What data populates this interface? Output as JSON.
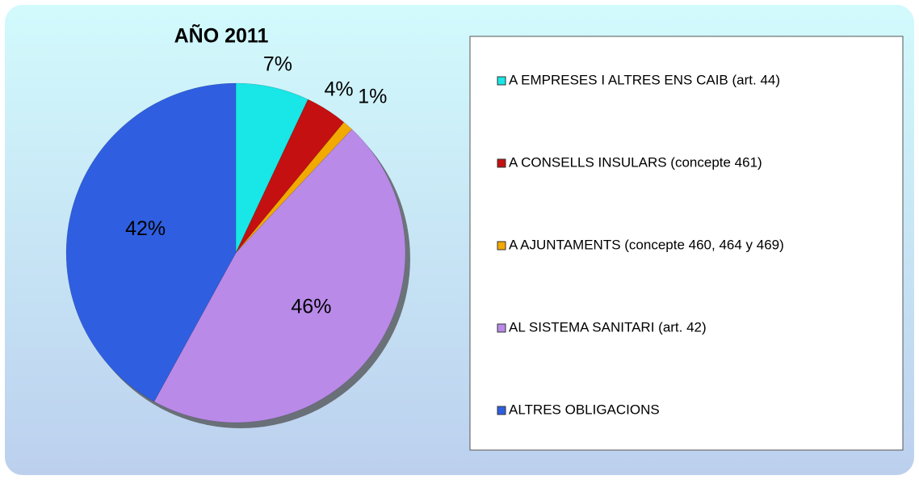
{
  "chart_data": {
    "type": "pie",
    "title": "AÑO 2011",
    "categories": [
      "A EMPRESES I ALTRES ENS CAIB (art. 44)",
      "A CONSELLS INSULARS (concepte 461)",
      "A AJUNTAMENTS (concepte 460, 464 y 469)",
      "AL SISTEMA SANITARI (art. 42)",
      "ALTRES OBLIGACIONS"
    ],
    "values": [
      7,
      4,
      1,
      46,
      42
    ],
    "value_labels": [
      "7%",
      "4%",
      "1%",
      "46%",
      "42%"
    ],
    "colors": [
      "#19e6e6",
      "#c41010",
      "#f2a900",
      "#b98ae8",
      "#2f5fe0"
    ],
    "legend": "right"
  }
}
